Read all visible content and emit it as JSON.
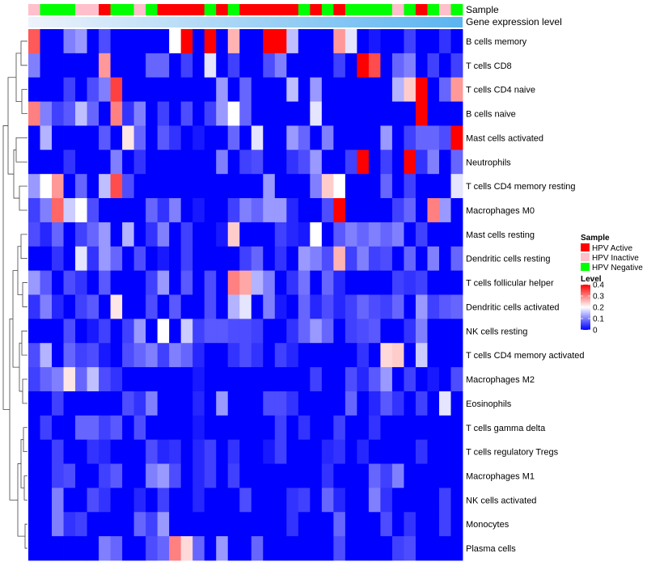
{
  "chart_data": {
    "type": "heatmap",
    "top_annotations": [
      {
        "name": "Sample",
        "values": [
          "HPV Inactive",
          "HPV Negative",
          "HPV Negative",
          "HPV Negative",
          "HPV Inactive",
          "HPV Inactive",
          "HPV Active",
          "HPV Negative",
          "HPV Negative",
          "HPV Inactive",
          "HPV Negative",
          "HPV Active",
          "HPV Active",
          "HPV Active",
          "HPV Active",
          "HPV Negative",
          "HPV Active",
          "HPV Negative",
          "HPV Active",
          "HPV Active",
          "HPV Active",
          "HPV Active",
          "HPV Active",
          "HPV Negative",
          "HPV Active",
          "HPV Negative",
          "HPV Active",
          "HPV Negative",
          "HPV Negative",
          "HPV Negative",
          "HPV Negative",
          "HPV Inactive",
          "HPV Negative",
          "HPV Active",
          "HPV Negative",
          "HPV Inactive",
          "HPV Negative"
        ]
      },
      {
        "name": "Gene expression level"
      }
    ],
    "rows": [
      "B cells memory",
      "T cells CD8",
      "T cells CD4 naive",
      "B cells naive",
      "Mast cells activated",
      "Neutrophils",
      "T cells CD4 memory resting",
      "Macrophages M0",
      "Mast cells resting",
      "Dendritic cells resting",
      "T cells follicular helper",
      "Dendritic cells activated",
      "NK cells resting",
      "T cells CD4 memory activated",
      "Macrophages M2",
      "Eosinophils",
      "T cells gamma delta",
      "T cells regulatory  Tregs",
      "Macrophages M1",
      "NK cells activated",
      "Monocytes",
      "Plasma cells"
    ],
    "values": [
      [
        0.33,
        0,
        0,
        0.1,
        0.12,
        0,
        0.06,
        0,
        0,
        0,
        0,
        0,
        0.2,
        0.4,
        0,
        0.4,
        0,
        0.26,
        0,
        0,
        0.4,
        0.4,
        0.15,
        0,
        0,
        0,
        0.28,
        0.18,
        0,
        0.02,
        0,
        0,
        0.05,
        0,
        0,
        0.04,
        0
      ],
      [
        0.1,
        0,
        0,
        0,
        0,
        0,
        0.28,
        0,
        0,
        0,
        0.08,
        0.08,
        0,
        0.05,
        0,
        0.18,
        0,
        0.05,
        0,
        0,
        0.06,
        0.1,
        0,
        0,
        0,
        0,
        0.05,
        0,
        0.4,
        0.34,
        0,
        0.08,
        0.1,
        0,
        0.05,
        0,
        0.05
      ],
      [
        0,
        0,
        0,
        0.05,
        0,
        0.06,
        0.1,
        0.35,
        0,
        0,
        0,
        0,
        0,
        0,
        0,
        0,
        0.12,
        0,
        0.08,
        0,
        0,
        0,
        0.15,
        0,
        0.12,
        0,
        0,
        0,
        0,
        0,
        0,
        0.14,
        0.24,
        0.4,
        0,
        0.08,
        0.28
      ],
      [
        0.3,
        0.1,
        0.05,
        0.07,
        0.15,
        0.08,
        0,
        0.3,
        0.04,
        0.1,
        0,
        0.05,
        0,
        0.06,
        0,
        0.05,
        0.12,
        0.2,
        0.08,
        0,
        0,
        0,
        0,
        0,
        0.18,
        0,
        0,
        0,
        0,
        0,
        0,
        0,
        0,
        0.4,
        0,
        0,
        0
      ],
      [
        0,
        0.14,
        0,
        0,
        0,
        0,
        0.07,
        0,
        0.22,
        0.08,
        0,
        0.07,
        0.04,
        0,
        0.02,
        0,
        0,
        0.08,
        0,
        0.18,
        0,
        0,
        0.12,
        0.08,
        0,
        0.1,
        0,
        0,
        0,
        0,
        0.12,
        0,
        0.05,
        0.08,
        0.08,
        0.06,
        0.4
      ],
      [
        0,
        0,
        0,
        0.04,
        0,
        0,
        0,
        0.1,
        0,
        0.04,
        0,
        0,
        0,
        0,
        0,
        0,
        0.1,
        0,
        0.05,
        0.06,
        0,
        0,
        0.04,
        0.06,
        0.12,
        0,
        0,
        0.05,
        0.4,
        0,
        0.05,
        0,
        0.4,
        0.04,
        0.1,
        0,
        0.08
      ],
      [
        0.12,
        0.2,
        0.28,
        0,
        0.08,
        0,
        0.15,
        0.34,
        0.06,
        0,
        0,
        0,
        0,
        0,
        0,
        0,
        0,
        0,
        0,
        0,
        0.12,
        0,
        0,
        0,
        0.1,
        0.24,
        0.2,
        0,
        0,
        0,
        0.08,
        0,
        0.05,
        0,
        0,
        0,
        0.18
      ],
      [
        0.05,
        0.1,
        0.32,
        0.16,
        0.2,
        0.06,
        0,
        0,
        0,
        0,
        0.08,
        0.04,
        0.1,
        0,
        0.02,
        0,
        0,
        0.05,
        0.1,
        0.08,
        0.12,
        0.12,
        0.03,
        0,
        0,
        0.06,
        0.4,
        0,
        0,
        0,
        0,
        0.05,
        0.08,
        0,
        0.3,
        0.12,
        0
      ],
      [
        0.06,
        0.03,
        0.08,
        0,
        0.05,
        0.08,
        0.12,
        0,
        0.14,
        0,
        0.04,
        0.1,
        0,
        0.05,
        0,
        0,
        0.02,
        0.24,
        0,
        0,
        0,
        0.05,
        0.03,
        0.02,
        0.2,
        0,
        0.07,
        0.1,
        0.08,
        0.1,
        0.08,
        0.1,
        0,
        0.05,
        0,
        0,
        0
      ],
      [
        0,
        0,
        0.04,
        0,
        0.18,
        0.04,
        0.12,
        0.08,
        0,
        0.06,
        0,
        0.02,
        0,
        0.05,
        0,
        0,
        0,
        0,
        0.05,
        0.08,
        0,
        0.04,
        0,
        0.12,
        0.1,
        0.06,
        0.26,
        0.05,
        0.1,
        0.05,
        0.06,
        0,
        0.08,
        0,
        0.1,
        0,
        0.08
      ],
      [
        0.12,
        0.07,
        0,
        0.06,
        0.04,
        0,
        0.07,
        0,
        0,
        0,
        0.05,
        0.12,
        0,
        0.07,
        0,
        0.06,
        0,
        0.3,
        0.27,
        0.14,
        0.1,
        0,
        0.04,
        0.09,
        0,
        0.08,
        0.03,
        0,
        0,
        0,
        0,
        0.05,
        0.04,
        0.05,
        0,
        0,
        0
      ],
      [
        0.04,
        0.1,
        0.03,
        0,
        0.05,
        0.07,
        0,
        0.22,
        0,
        0,
        0.06,
        0,
        0.07,
        0,
        0,
        0.06,
        0,
        0.14,
        0.18,
        0,
        0.1,
        0.02,
        0,
        0.08,
        0.03,
        0.06,
        0.03,
        0.05,
        0.08,
        0.06,
        0.05,
        0.08,
        0,
        0.12,
        0.05,
        0.07,
        0.08
      ],
      [
        0,
        0,
        0,
        0.06,
        0,
        0.02,
        0.05,
        0,
        0.05,
        0.12,
        0,
        0.2,
        0,
        0.16,
        0.05,
        0.07,
        0.07,
        0.06,
        0.06,
        0.05,
        0,
        0,
        0.04,
        0.08,
        0.12,
        0.08,
        0,
        0.05,
        0.06,
        0.07,
        0,
        0,
        0.04,
        0.1,
        0,
        0,
        0
      ],
      [
        0.06,
        0.14,
        0,
        0.08,
        0.05,
        0.06,
        0.02,
        0,
        0.06,
        0.08,
        0.1,
        0.05,
        0.1,
        0.08,
        0.03,
        0,
        0,
        0.04,
        0.06,
        0.04,
        0,
        0.05,
        0.03,
        0,
        0,
        0,
        0,
        0,
        0.04,
        0,
        0.23,
        0.24,
        0,
        0.16,
        0,
        0,
        0
      ],
      [
        0.05,
        0.08,
        0.1,
        0.22,
        0.08,
        0.15,
        0.06,
        0.04,
        0,
        0,
        0,
        0,
        0,
        0,
        0.02,
        0,
        0,
        0,
        0,
        0,
        0,
        0,
        0,
        0,
        0.05,
        0,
        0,
        0.06,
        0.03,
        0.07,
        0.12,
        0,
        0.05,
        0,
        0.02,
        0,
        0.06
      ],
      [
        0,
        0,
        0.05,
        0,
        0,
        0,
        0,
        0,
        0.06,
        0.04,
        0.1,
        0,
        0,
        0,
        0.03,
        0,
        0.12,
        0,
        0,
        0,
        0.06,
        0.06,
        0.04,
        0,
        0,
        0,
        0,
        0.08,
        0,
        0.03,
        0.07,
        0.04,
        0,
        0.05,
        0,
        0.18,
        0
      ],
      [
        0,
        0.05,
        0,
        0,
        0.08,
        0.08,
        0.05,
        0.07,
        0,
        0.06,
        0,
        0,
        0,
        0,
        0.02,
        0,
        0,
        0,
        0,
        0,
        0,
        0.05,
        0,
        0.04,
        0,
        0,
        0.05,
        0,
        0,
        0.04,
        0,
        0,
        0,
        0,
        0,
        0,
        0
      ],
      [
        0,
        0,
        0.05,
        0,
        0,
        0.04,
        0.03,
        0,
        0,
        0,
        0.06,
        0.03,
        0.04,
        0,
        0.03,
        0.05,
        0,
        0.04,
        0,
        0,
        0.02,
        0.05,
        0,
        0,
        0,
        0.03,
        0.04,
        0,
        0.03,
        0,
        0,
        0,
        0,
        0.04,
        0,
        0,
        0
      ],
      [
        0,
        0,
        0.05,
        0.06,
        0,
        0,
        0.05,
        0.07,
        0,
        0,
        0.1,
        0.12,
        0.06,
        0,
        0.03,
        0.05,
        0,
        0.05,
        0,
        0,
        0,
        0,
        0,
        0,
        0,
        0.04,
        0,
        0,
        0,
        0.08,
        0.05,
        0.1,
        0,
        0,
        0,
        0,
        0
      ],
      [
        0,
        0,
        0.1,
        0,
        0,
        0.06,
        0.04,
        0,
        0,
        0.03,
        0,
        0.05,
        0,
        0,
        0.03,
        0,
        0,
        0,
        0.06,
        0,
        0,
        0,
        0.04,
        0.05,
        0,
        0.08,
        0.03,
        0,
        0,
        0.1,
        0.04,
        0,
        0,
        0,
        0,
        0.05,
        0
      ],
      [
        0,
        0,
        0.1,
        0.04,
        0.05,
        0,
        0,
        0,
        0,
        0.08,
        0.05,
        0.12,
        0,
        0,
        0,
        0,
        0,
        0,
        0,
        0,
        0,
        0,
        0.04,
        0,
        0,
        0,
        0.08,
        0,
        0,
        0,
        0.06,
        0,
        0.04,
        0,
        0,
        0.05,
        0
      ],
      [
        0,
        0,
        0,
        0,
        0,
        0,
        0.1,
        0.08,
        0,
        0,
        0.06,
        0.08,
        0.3,
        0.23,
        0.08,
        0,
        0.12,
        0,
        0,
        0.08,
        0,
        0,
        0,
        0,
        0,
        0,
        0.06,
        0,
        0,
        0,
        0,
        0.05,
        0.06,
        0,
        0,
        0,
        0
      ]
    ],
    "color_scale": {
      "low": "#0000ff",
      "mid": "#ffffff",
      "high": "#ff0000",
      "min": 0,
      "mid_value": 0.2,
      "max": 0.4
    },
    "legend": {
      "sample_title": "Sample",
      "sample_levels": [
        {
          "label": "HPV Active",
          "color": "#ff0000"
        },
        {
          "label": "HPV Inactive",
          "color": "#ffc0cb"
        },
        {
          "label": "HPV Negative",
          "color": "#00ff00"
        }
      ],
      "level_title": "Level",
      "level_ticks": [
        "0.4",
        "0.3",
        "0.2",
        "0.1",
        "0"
      ],
      "level_tick_values": [
        0.4,
        0.3,
        0.2,
        0.1,
        0
      ],
      "placement": "right"
    },
    "dendrogram": "rows"
  }
}
